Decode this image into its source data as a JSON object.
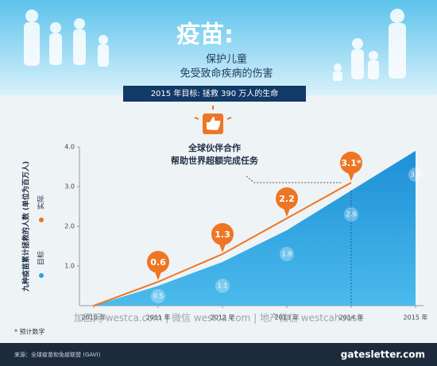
{
  "chart_data": {
    "type": "area_line",
    "title": "疫苗:",
    "subtitle": [
      "保护儿童",
      "免受致命疾病的伤害"
    ],
    "goal_banner": "2015 年目标: 拯救 390 万人的生命",
    "annotation": [
      "全球伙伴合作",
      "帮助世界超额完成任务"
    ],
    "y_label": "九种疫苗累计拯救的人数 (单位为百万人)",
    "categories": [
      "2010 年",
      "2011 年",
      "2012 年",
      "2013 年",
      "2014 年",
      "2015 年"
    ],
    "series": [
      {
        "name": "目标",
        "color": "#29a3e0",
        "values": [
          0,
          0.5,
          1.1,
          1.9,
          2.9,
          3.9
        ],
        "value_labels": [
          null,
          "0.5",
          "1.1",
          "1.9",
          "2.9",
          "3.9"
        ]
      },
      {
        "name": "实际",
        "color": "#ee7623",
        "values": [
          0,
          0.6,
          1.3,
          2.2,
          3.1,
          null
        ],
        "value_labels": [
          null,
          "0.6",
          "1.3",
          "2.2",
          "3.1*",
          null
        ]
      }
    ],
    "ylim": [
      0,
      4
    ],
    "yticks": [
      {
        "value": 1,
        "label": "1.0"
      },
      {
        "value": 2,
        "label": "2.0"
      },
      {
        "value": 3,
        "label": "3.0"
      },
      {
        "value": 4,
        "label": "4.0"
      }
    ],
    "footnote": "* 预计数字",
    "source": "来源：全球疫苗和免疫联盟 (GAVI)",
    "site": "gatesletter.com",
    "watermark": "加西网 westca.com | 微信 westca.com | 地产微信 westcahouse"
  }
}
